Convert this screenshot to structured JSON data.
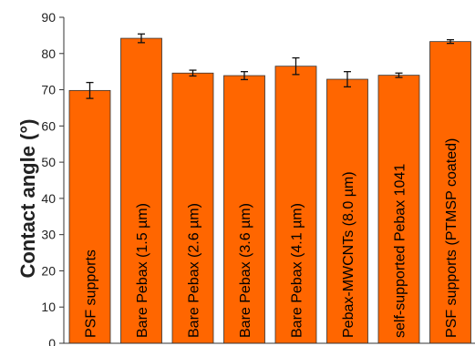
{
  "chart_data": {
    "type": "bar",
    "title": "",
    "xlabel": "",
    "ylabel": "Contact angle (°)",
    "ylim": [
      0,
      90
    ],
    "yticks": [
      0,
      10,
      20,
      30,
      40,
      50,
      60,
      70,
      80,
      90
    ],
    "grid": false,
    "bar_color": "#ff6600",
    "bar_edge_color": "#333333",
    "categories": [
      "PSF supports",
      "Bare Pebax (1.5 µm)",
      "Bare Pebax (2.6 µm)",
      "Bare Pebax (3.6 µm)",
      "Bare Pebax (4.1 µm)",
      "Pebax-MWCNTs (8.0 µm)",
      "self-supported Pebax 1041",
      "PSF supports (PTMSP coated)"
    ],
    "values": [
      69.8,
      84.2,
      74.6,
      73.9,
      76.5,
      72.9,
      74.0,
      83.3
    ],
    "errors": [
      2.2,
      1.2,
      0.8,
      1.1,
      2.3,
      2.1,
      0.6,
      0.5
    ]
  }
}
